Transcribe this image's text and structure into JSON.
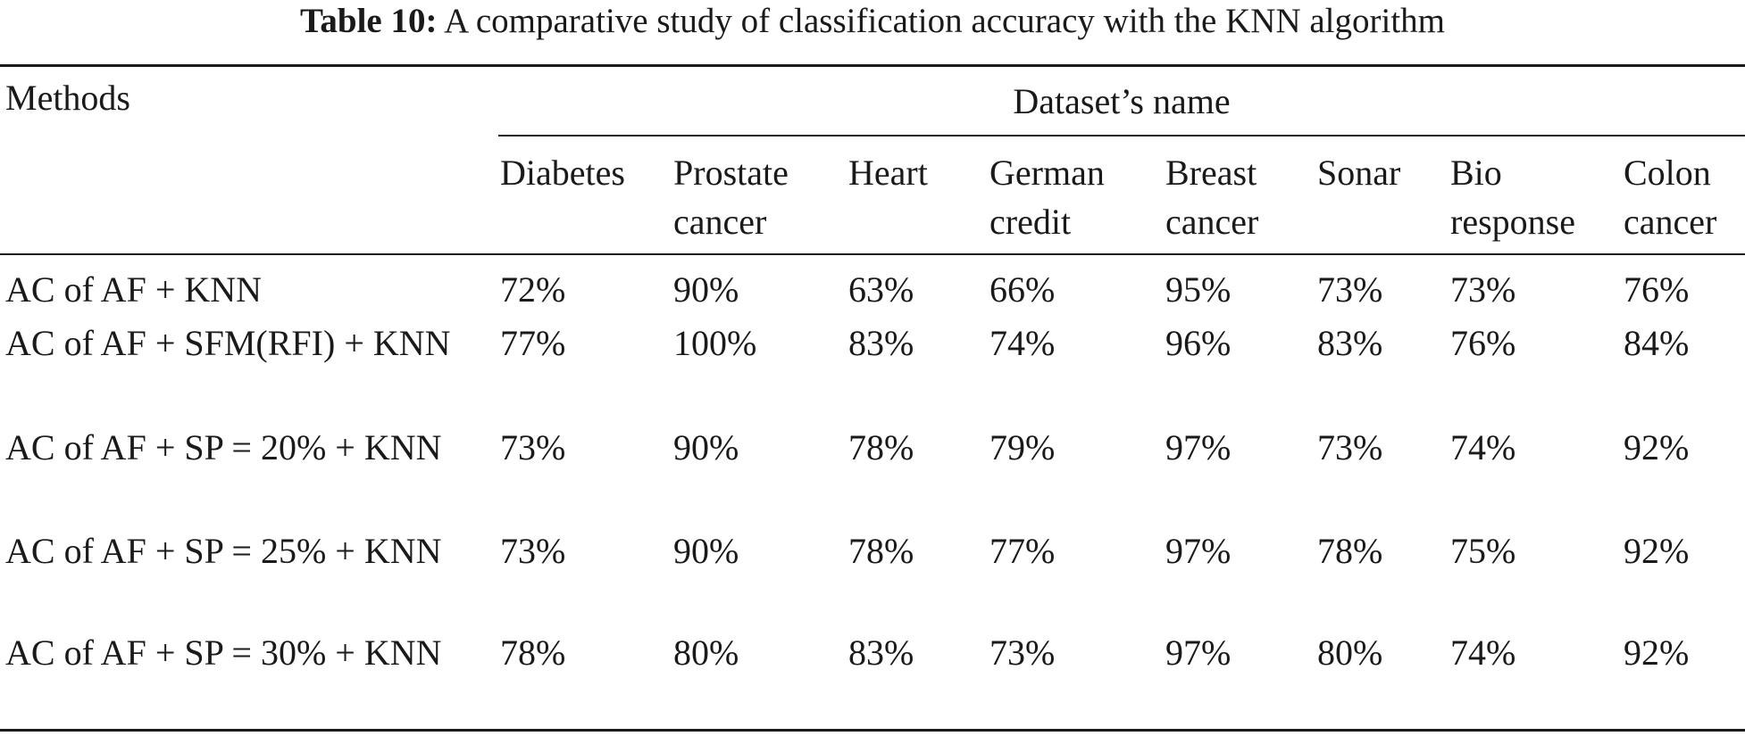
{
  "caption": {
    "label": "Table 10:",
    "text": "A comparative study of classification accuracy with the KNN algorithm"
  },
  "header": {
    "methods": "Methods",
    "group": "Dataset’s name",
    "columns": [
      {
        "line1": "Diabetes",
        "line2": ""
      },
      {
        "line1": "Prostate",
        "line2": "cancer"
      },
      {
        "line1": "Heart",
        "line2": ""
      },
      {
        "line1": "German",
        "line2": "credit"
      },
      {
        "line1": "Breast",
        "line2": "cancer"
      },
      {
        "line1": "Sonar",
        "line2": ""
      },
      {
        "line1": "Bio",
        "line2": "response"
      },
      {
        "line1": "Colon",
        "line2": "cancer"
      }
    ]
  },
  "rows": [
    {
      "method": "AC of AF + KNN",
      "values": [
        "72%",
        "90%",
        "63%",
        "66%",
        "95%",
        "73%",
        "73%",
        "76%"
      ]
    },
    {
      "method": "AC of AF + SFM(RFI) + KNN",
      "values": [
        "77%",
        "100%",
        "83%",
        "74%",
        "96%",
        "83%",
        "76%",
        "84%"
      ]
    },
    {
      "method": "AC of AF + SP = 20% + KNN",
      "values": [
        "73%",
        "90%",
        "78%",
        "79%",
        "97%",
        "73%",
        "74%",
        "92%"
      ]
    },
    {
      "method": "AC of AF + SP = 25% + KNN",
      "values": [
        "73%",
        "90%",
        "78%",
        "77%",
        "97%",
        "78%",
        "75%",
        "92%"
      ]
    },
    {
      "method": "AC of AF + SP = 30% + KNN",
      "values": [
        "78%",
        "80%",
        "83%",
        "73%",
        "97%",
        "80%",
        "74%",
        "92%"
      ]
    }
  ]
}
